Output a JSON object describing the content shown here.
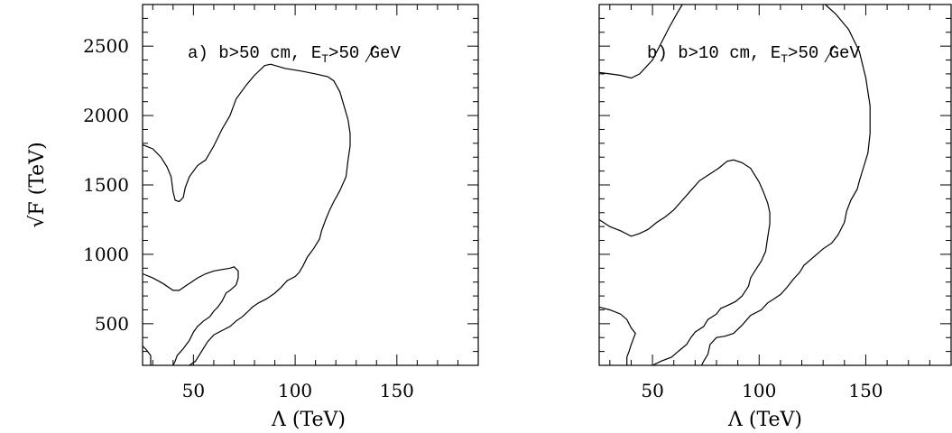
{
  "chart_data": [
    {
      "type": "line",
      "title": "a) b>50 cm, E̸T>50 GeV",
      "title_main": "a) b>50 cm, ",
      "title_met": "E",
      "title_met_sub": "T",
      "title_tail": ">50 GeV",
      "xlabel": "Λ (TeV)",
      "ylabel_root": "√F",
      "ylabel_unit": "(TeV)",
      "xlim": [
        25,
        190
      ],
      "ylim": [
        200,
        2800
      ],
      "xticks": [
        50,
        100,
        150
      ],
      "yticks": [
        500,
        1000,
        1500,
        2000,
        2500
      ],
      "xtick_labels": [
        "50",
        "100",
        "150"
      ],
      "ytick_labels": [
        "500",
        "1000",
        "1500",
        "2000",
        "2500"
      ],
      "series": [
        {
          "values": [
            [
              25,
              1790
            ],
            [
              30,
              1760
            ],
            [
              34,
              1700
            ],
            [
              37,
              1630
            ],
            [
              39,
              1560
            ],
            [
              40,
              1450
            ],
            [
              41,
              1390
            ],
            [
              43,
              1380
            ],
            [
              45,
              1410
            ],
            [
              46,
              1480
            ],
            [
              48,
              1560
            ],
            [
              52,
              1640
            ],
            [
              56,
              1680
            ],
            [
              60,
              1780
            ],
            [
              64,
              1900
            ],
            [
              68,
              2000
            ],
            [
              71,
              2120
            ],
            [
              76,
              2220
            ],
            [
              80,
              2290
            ],
            [
              85,
              2360
            ],
            [
              88,
              2370
            ],
            [
              95,
              2340
            ],
            [
              103,
              2320
            ],
            [
              110,
              2300
            ],
            [
              116,
              2280
            ],
            [
              119,
              2250
            ],
            [
              122,
              2170
            ],
            [
              124,
              2070
            ],
            [
              126,
              1970
            ],
            [
              127,
              1870
            ],
            [
              127,
              1780
            ],
            [
              126,
              1680
            ],
            [
              125,
              1560
            ],
            [
              122,
              1460
            ],
            [
              119,
              1380
            ],
            [
              117,
              1320
            ],
            [
              115,
              1250
            ],
            [
              113,
              1170
            ],
            [
              112,
              1110
            ],
            [
              109,
              1040
            ],
            [
              106,
              980
            ],
            [
              104,
              920
            ],
            [
              102,
              870
            ],
            [
              100,
              840
            ],
            [
              96,
              810
            ],
            [
              93,
              760
            ],
            [
              90,
              720
            ],
            [
              86,
              680
            ],
            [
              82,
              650
            ],
            [
              79,
              620
            ],
            [
              77,
              590
            ],
            [
              74,
              550
            ],
            [
              71,
              520
            ],
            [
              68,
              480
            ],
            [
              64,
              450
            ],
            [
              60,
              420
            ],
            [
              57,
              370
            ],
            [
              54,
              300
            ],
            [
              51,
              230
            ],
            [
              48,
              200
            ]
          ]
        },
        {
          "values": [
            [
              25,
              860
            ],
            [
              30,
              830
            ],
            [
              35,
              790
            ],
            [
              40,
              740
            ],
            [
              43,
              740
            ],
            [
              46,
              770
            ],
            [
              49,
              800
            ],
            [
              52,
              830
            ],
            [
              56,
              860
            ],
            [
              60,
              880
            ],
            [
              64,
              890
            ],
            [
              68,
              900
            ],
            [
              70,
              910
            ],
            [
              72,
              880
            ],
            [
              72,
              830
            ],
            [
              71,
              780
            ],
            [
              68,
              740
            ],
            [
              66,
              720
            ],
            [
              65,
              690
            ],
            [
              64,
              660
            ],
            [
              62,
              620
            ],
            [
              60,
              590
            ],
            [
              58,
              550
            ],
            [
              55,
              520
            ],
            [
              52,
              480
            ],
            [
              50,
              440
            ],
            [
              48,
              380
            ],
            [
              45,
              320
            ],
            [
              42,
              270
            ],
            [
              41,
              230
            ],
            [
              40,
              200
            ]
          ]
        },
        {
          "values": [
            [
              25,
              340
            ],
            [
              27,
              310
            ],
            [
              29,
              270
            ],
            [
              29,
              240
            ],
            [
              29,
              200
            ]
          ]
        }
      ]
    },
    {
      "type": "line",
      "title": "b) b>10 cm, E̸T>50 GeV",
      "title_main": "b) b>10 cm, ",
      "title_met": "E",
      "title_met_sub": "T",
      "title_tail": ">50 GeV",
      "xlabel": "Λ (TeV)",
      "xlim": [
        25,
        190
      ],
      "ylim": [
        200,
        2800
      ],
      "xticks": [
        50,
        100,
        150
      ],
      "yticks": [
        500,
        1000,
        1500,
        2000,
        2500
      ],
      "xtick_labels": [
        "50",
        "100",
        "150"
      ],
      "series": [
        {
          "values": [
            [
              25,
              2310
            ],
            [
              30,
              2300
            ],
            [
              35,
              2290
            ],
            [
              40,
              2270
            ],
            [
              44,
              2300
            ],
            [
              47,
              2350
            ],
            [
              50,
              2400
            ],
            [
              54,
              2520
            ],
            [
              58,
              2640
            ],
            [
              62,
              2750
            ],
            [
              64,
              2800
            ]
          ]
        },
        {
          "values": [
            [
              131,
              2800
            ],
            [
              136,
              2730
            ],
            [
              142,
              2620
            ],
            [
              147,
              2460
            ],
            [
              150,
              2270
            ],
            [
              152,
              2070
            ],
            [
              152,
              1870
            ],
            [
              151,
              1730
            ],
            [
              149,
              1630
            ],
            [
              147,
              1530
            ],
            [
              146,
              1470
            ],
            [
              143,
              1390
            ],
            [
              141,
              1310
            ],
            [
              140,
              1230
            ],
            [
              137,
              1140
            ],
            [
              134,
              1080
            ],
            [
              130,
              1040
            ],
            [
              127,
              1000
            ],
            [
              124,
              960
            ],
            [
              121,
              920
            ],
            [
              119,
              870
            ],
            [
              116,
              820
            ],
            [
              113,
              760
            ],
            [
              110,
              710
            ],
            [
              107,
              680
            ],
            [
              104,
              650
            ],
            [
              101,
              600
            ],
            [
              96,
              560
            ],
            [
              92,
              490
            ],
            [
              88,
              430
            ],
            [
              84,
              410
            ],
            [
              80,
              400
            ],
            [
              77,
              350
            ],
            [
              76,
              280
            ],
            [
              74,
              230
            ],
            [
              73,
              200
            ]
          ]
        },
        {
          "values": [
            [
              25,
              1250
            ],
            [
              30,
              1200
            ],
            [
              35,
              1170
            ],
            [
              40,
              1130
            ],
            [
              44,
              1150
            ],
            [
              48,
              1180
            ],
            [
              52,
              1230
            ],
            [
              56,
              1270
            ],
            [
              60,
              1320
            ],
            [
              64,
              1390
            ],
            [
              68,
              1460
            ],
            [
              72,
              1530
            ],
            [
              77,
              1580
            ],
            [
              81,
              1620
            ],
            [
              85,
              1670
            ],
            [
              88,
              1680
            ],
            [
              92,
              1660
            ],
            [
              96,
              1620
            ],
            [
              98,
              1570
            ],
            [
              100,
              1520
            ],
            [
              102,
              1450
            ],
            [
              104,
              1370
            ],
            [
              105,
              1300
            ],
            [
              105,
              1220
            ],
            [
              104,
              1120
            ],
            [
              103,
              1020
            ],
            [
              101,
              950
            ],
            [
              98,
              880
            ],
            [
              96,
              830
            ],
            [
              95,
              770
            ],
            [
              92,
              700
            ],
            [
              89,
              660
            ],
            [
              85,
              630
            ],
            [
              82,
              610
            ],
            [
              80,
              570
            ],
            [
              76,
              530
            ],
            [
              74,
              480
            ],
            [
              70,
              440
            ],
            [
              68,
              400
            ],
            [
              66,
              350
            ],
            [
              62,
              300
            ],
            [
              59,
              260
            ],
            [
              54,
              230
            ],
            [
              50,
              200
            ]
          ]
        },
        {
          "values": [
            [
              25,
              620
            ],
            [
              30,
              600
            ],
            [
              35,
              570
            ],
            [
              38,
              530
            ],
            [
              40,
              470
            ],
            [
              42,
              430
            ],
            [
              41,
              390
            ],
            [
              40,
              350
            ],
            [
              39,
              300
            ],
            [
              38,
              260
            ],
            [
              38,
              200
            ]
          ]
        }
      ]
    }
  ]
}
